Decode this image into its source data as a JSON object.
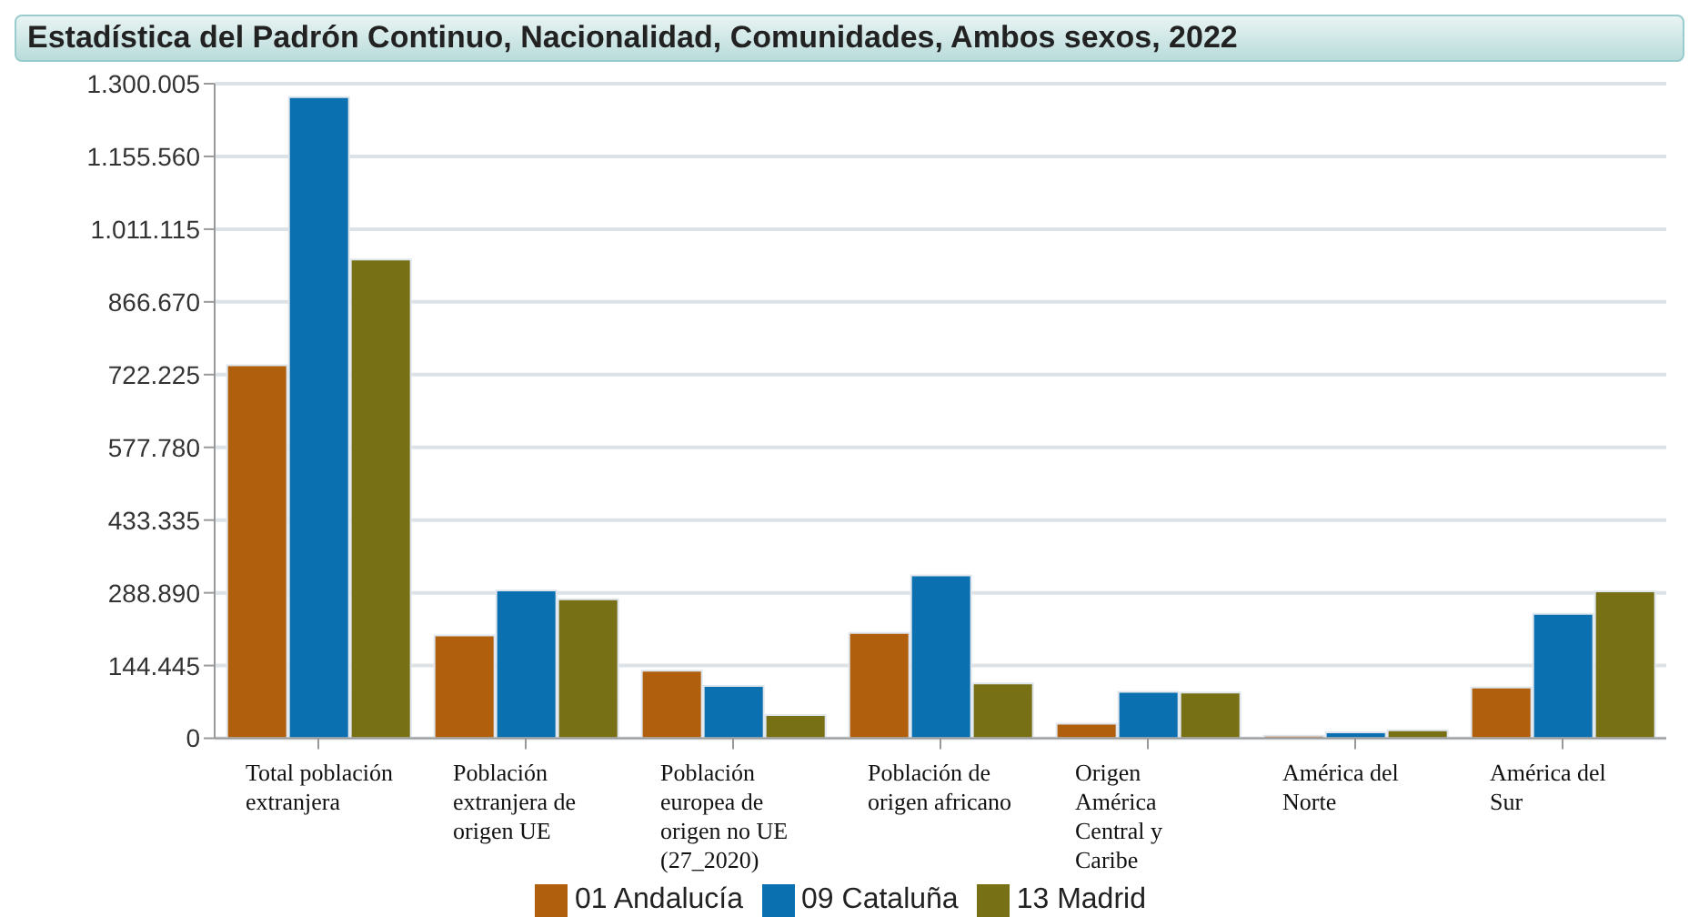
{
  "chart_data": {
    "type": "bar",
    "title": "Estadística del Padrón Continuo, Nacionalidad, Comunidades, Ambos sexos, 2022",
    "categories": [
      "Total población extranjera",
      "Población extranjera de origen UE",
      "Población europea de origen no UE (27_2020)",
      "Población de origen africano",
      "Origen América Central y Caribe",
      "América del Norte",
      "América del Sur"
    ],
    "series": [
      {
        "name": "01 Andalucía",
        "color": "#b05f0c",
        "values": [
          741000,
          204000,
          134000,
          209000,
          29000,
          5000,
          101000
        ]
      },
      {
        "name": "09 Cataluña",
        "color": "#0b70b0",
        "values": [
          1273500,
          293600,
          104000,
          323600,
          92000,
          12000,
          247000
        ]
      },
      {
        "name": "13 Madrid",
        "color": "#787015",
        "values": [
          951000,
          276000,
          46000,
          109000,
          91000,
          16000,
          292000
        ]
      }
    ],
    "ylim": [
      0,
      1300005
    ],
    "yticks": [
      {
        "value": 0,
        "label": "0"
      },
      {
        "value": 144445,
        "label": "144.445"
      },
      {
        "value": 288890,
        "label": "288.890"
      },
      {
        "value": 433335,
        "label": "433.335"
      },
      {
        "value": 577780,
        "label": "577.780"
      },
      {
        "value": 722225,
        "label": "722.225"
      },
      {
        "value": 866670,
        "label": "866.670"
      },
      {
        "value": 1011115,
        "label": "1.011.115"
      },
      {
        "value": 1155560,
        "label": "1.155.560"
      },
      {
        "value": 1300005,
        "label": "1.300.005"
      }
    ],
    "grid": "y",
    "legend": "bottom"
  }
}
